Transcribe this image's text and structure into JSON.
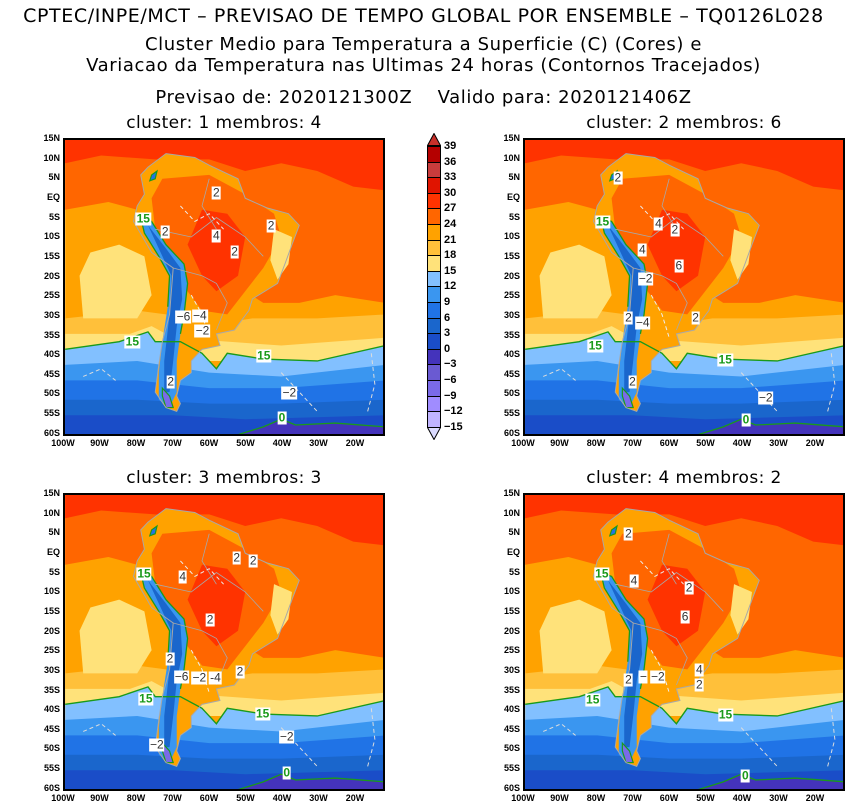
{
  "header": {
    "line1": "CPTEC/INPE/MCT – PREVISAO DE TEMPO GLOBAL POR ENSEMBLE – TQ0126L028",
    "line2": "Cluster Medio para Temperatura a Superficie (C) (Cores) e",
    "line3": "Variacao da Temperatura nas Ultimas 24 horas (Contornos Tracejados)",
    "line4": "Previsao de: 2020121300Z    Valido para: 2020121406Z"
  },
  "axes": {
    "lat_ticks": [
      "15N",
      "10N",
      "5N",
      "EQ",
      "5S",
      "10S",
      "15S",
      "20S",
      "25S",
      "30S",
      "35S",
      "40S",
      "45S",
      "50S",
      "55S",
      "60S"
    ],
    "lat_values": [
      15,
      10,
      5,
      0,
      -5,
      -10,
      -15,
      -20,
      -25,
      -30,
      -35,
      -40,
      -45,
      -50,
      -55,
      -60
    ],
    "lon_ticks": [
      "100W",
      "90W",
      "80W",
      "70W",
      "60W",
      "50W",
      "40W",
      "30W",
      "20W"
    ],
    "lon_values": [
      -100,
      -90,
      -80,
      -70,
      -60,
      -50,
      -40,
      -30,
      -20
    ]
  },
  "colorbar": {
    "labels": [
      "39",
      "36",
      "33",
      "30",
      "27",
      "24",
      "21",
      "18",
      "15",
      "12",
      "9",
      "6",
      "3",
      "0",
      "−3",
      "−6",
      "−9",
      "−12",
      "−15"
    ],
    "over_color": "#c8302a",
    "under_color": "#dcdcff",
    "colors": [
      "#b40000",
      "#c83c3c",
      "#e01400",
      "#ff3300",
      "#ff6600",
      "#ffa200",
      "#ffc03a",
      "#ffe27a",
      "#82c0ff",
      "#3a96f0",
      "#2073e6",
      "#1a66cc",
      "#1a4dc8",
      "#4433bb",
      "#6a5ad2",
      "#7a6ae8",
      "#a08cff",
      "#c0b4ff"
    ]
  },
  "panels": [
    {
      "title": "cluster: 1   membros: 4",
      "labels": [
        {
          "t": "15",
          "lon": -78,
          "lat": -5.5,
          "green": true
        },
        {
          "t": "2",
          "lon": -58,
          "lat": 1
        },
        {
          "t": "2",
          "lon": -72,
          "lat": -9
        },
        {
          "t": "4",
          "lon": -58,
          "lat": -10
        },
        {
          "t": "2",
          "lon": -53,
          "lat": -14
        },
        {
          "t": "2",
          "lon": -43,
          "lat": -7.5
        },
        {
          "t": "−6",
          "lon": -67,
          "lat": -30.5
        },
        {
          "t": "−4",
          "lon": -62.5,
          "lat": -30.3
        },
        {
          "t": "−2",
          "lon": -61.8,
          "lat": -32
        },
        {
          "t": "15",
          "lon": -81,
          "lat": -37,
          "green": true
        },
        {
          "t": "15",
          "lon": -45,
          "lat": -40.5,
          "green": true
        },
        {
          "t": "2",
          "lon": -70.5,
          "lat": -47
        },
        {
          "t": "−2",
          "lon": -38,
          "lat": -50
        },
        {
          "t": "0",
          "lon": -40,
          "lat": -56.3,
          "green": true
        }
      ]
    },
    {
      "title": "cluster: 2   membros: 6",
      "labels": [
        {
          "t": "2",
          "lon": -74,
          "lat": 4.7
        },
        {
          "t": "15",
          "lon": -78.2,
          "lat": -6.5,
          "green": true
        },
        {
          "t": "4",
          "lon": -62.9,
          "lat": -7
        },
        {
          "t": "2",
          "lon": -58.4,
          "lat": -8.4
        },
        {
          "t": "4",
          "lon": -67.3,
          "lat": -13.5
        },
        {
          "t": "6",
          "lon": -57.3,
          "lat": -17.5
        },
        {
          "t": "−2",
          "lon": -66.4,
          "lat": -20.9
        },
        {
          "t": "2",
          "lon": -71.1,
          "lat": -30.7
        },
        {
          "t": "−4",
          "lon": -67.2,
          "lat": -32
        },
        {
          "t": "2",
          "lon": -52.7,
          "lat": -30.9
        },
        {
          "t": "15",
          "lon": -80.2,
          "lat": -37.8,
          "green": true
        },
        {
          "t": "15",
          "lon": -44.6,
          "lat": -41.5,
          "green": true
        },
        {
          "t": "2",
          "lon": -70,
          "lat": -47.2
        },
        {
          "t": "−2",
          "lon": -33.5,
          "lat": -51.2
        },
        {
          "t": "0",
          "lon": -38.9,
          "lat": -56.8,
          "green": true
        }
      ]
    },
    {
      "title": "cluster: 3   membros: 3",
      "labels": [
        {
          "t": "15",
          "lon": -77.8,
          "lat": -5.7,
          "green": true
        },
        {
          "t": "4",
          "lon": -67.2,
          "lat": -6.3
        },
        {
          "t": "2",
          "lon": -52.4,
          "lat": -1.6
        },
        {
          "t": "2",
          "lon": -47.9,
          "lat": -2.2
        },
        {
          "t": "2",
          "lon": -59.7,
          "lat": -17.3
        },
        {
          "t": "2",
          "lon": -70.7,
          "lat": -27.3
        },
        {
          "t": "−6",
          "lon": -67.5,
          "lat": -31.9
        },
        {
          "t": "−2",
          "lon": -63.4,
          "lat": -32.2
        },
        {
          "t": "-4",
          "lon": -59.9,
          "lat": -32.2
        },
        {
          "t": "2",
          "lon": -51.5,
          "lat": -30.5
        },
        {
          "t": "15",
          "lon": -77.3,
          "lat": -37.5,
          "green": true
        },
        {
          "t": "15",
          "lon": -45.3,
          "lat": -41.2,
          "green": true
        },
        {
          "t": "−2",
          "lon": -74.3,
          "lat": -49.1
        },
        {
          "t": "−2",
          "lon": -38.7,
          "lat": -47
        },
        {
          "t": "0",
          "lon": -38.7,
          "lat": -56.2,
          "green": true
        }
      ]
    },
    {
      "title": "cluster: 4   membros: 2",
      "labels": [
        {
          "t": "2",
          "lon": -71.1,
          "lat": 4.6
        },
        {
          "t": "15",
          "lon": -78.4,
          "lat": -5.7,
          "green": true
        },
        {
          "t": "4",
          "lon": -69.6,
          "lat": -7.3
        },
        {
          "t": "2",
          "lon": -54.5,
          "lat": -9.1
        },
        {
          "t": "6",
          "lon": -55.6,
          "lat": -16.5
        },
        {
          "t": "2",
          "lon": -71.1,
          "lat": -32.6
        },
        {
          "t": "−",
          "lon": -67,
          "lat": -31.7
        },
        {
          "t": "−2",
          "lon": -63.8,
          "lat": -31.7
        },
        {
          "t": "4",
          "lon": -51.7,
          "lat": -30
        },
        {
          "t": "2",
          "lon": -51.7,
          "lat": -31.5
        },
        {
          "t": "15",
          "lon": -80.9,
          "lat": -37.7,
          "green": true
        },
        {
          "t": "15",
          "lon": -44.5,
          "lat": -41.5,
          "green": true
        },
        {
          "t": "0",
          "lon": -39.1,
          "lat": -57,
          "green": true
        }
      ]
    }
  ]
}
